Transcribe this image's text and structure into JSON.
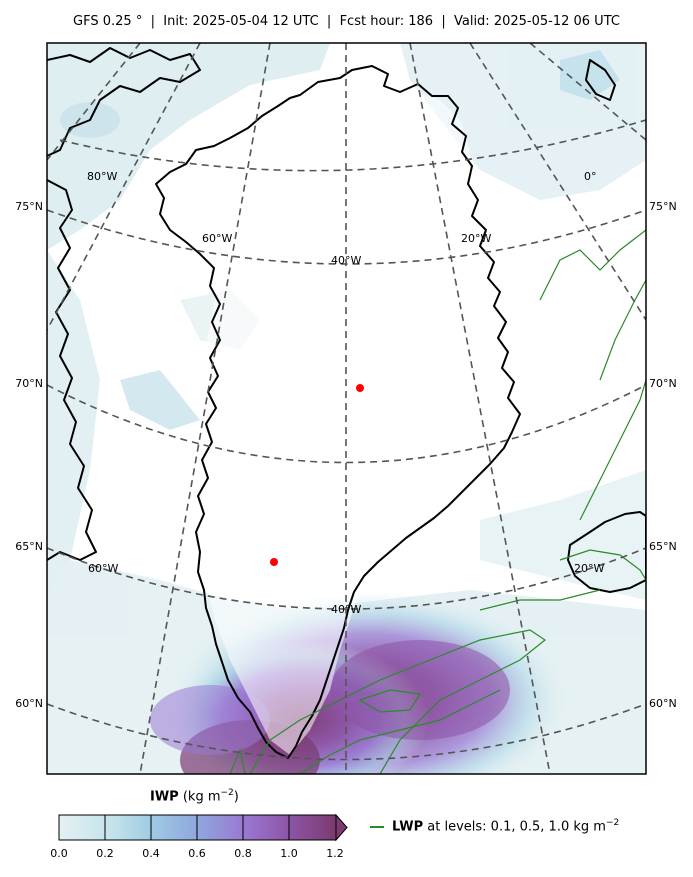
{
  "title": "GFS 0.25$^\\circ$  |  Init: 2025-05-04 12 UTC  |  Fcst hour: 186  |  Valid: 2025-05-12 06 UTC",
  "title_display": "GFS 0.25 °  |  Init: 2025-05-04 12 UTC  |  Fcst hour: 186  |  Valid: 2025-05-12 06 UTC",
  "latitude_labels_left": [
    "75°N",
    "70°N",
    "65°N",
    "60°N"
  ],
  "latitude_labels_right": [
    "75°N",
    "70°N",
    "65°N",
    "60°N"
  ],
  "longitude_labels": {
    "top_row": [
      "80°W",
      "60°W",
      "40°W",
      "20°W",
      "0°"
    ],
    "bottom_row": [
      "60°W",
      "40°W",
      "20°W"
    ]
  },
  "colorbar": {
    "variable": "IWP",
    "units": "(kg m$^{-2}$)",
    "units_display": "(kg m",
    "units_sup": "−2",
    "units_close": ")",
    "ticks": [
      "0.0",
      "0.2",
      "0.4",
      "0.6",
      "0.8",
      "1.0",
      "1.2"
    ],
    "range": [
      0.0,
      1.2
    ],
    "extend": "max",
    "colors": [
      "#e4f1f3",
      "#a9d3e6",
      "#8fa7de",
      "#9a79d3",
      "#8d54a6",
      "#7b3b70"
    ]
  },
  "legend": {
    "variable": "LWP",
    "text": " at levels: 0.1, 0.5, 1.0  kg m",
    "sup": "−2",
    "levels": [
      0.1,
      0.5,
      1.0
    ],
    "color": "#2a8a2a"
  },
  "markers": {
    "color": "#ff0000",
    "points": [
      {
        "lat": 71.0,
        "lon": -39.0
      },
      {
        "lat": 65.5,
        "lon": -47.0
      }
    ]
  },
  "graticule": {
    "style": "dashed",
    "color": "#555555"
  },
  "coastline_color": "#000000"
}
